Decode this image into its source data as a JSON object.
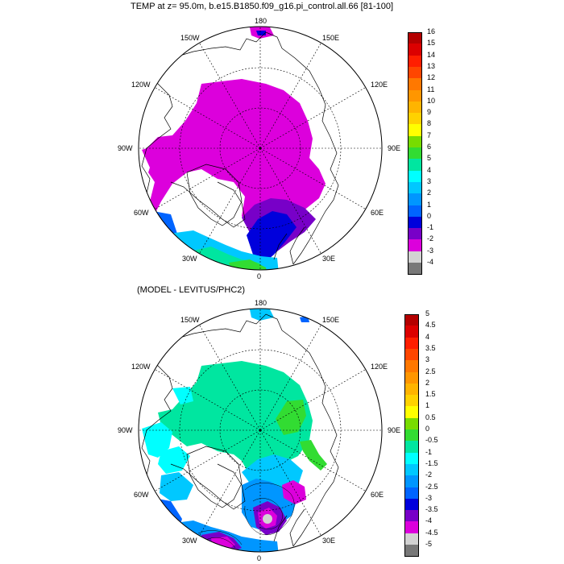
{
  "top_panel": {
    "title": "TEMP at z=  95.0m, b.e15.B1850.f09_g16.pi_control.all.66 [81-100]",
    "longitude_labels": [
      "180",
      "150W",
      "150E",
      "120W",
      "120E",
      "90W",
      "90E",
      "60W",
      "60E",
      "30W",
      "30E",
      "0"
    ],
    "colorbar": {
      "labels": [
        "16",
        "15",
        "14",
        "13",
        "12",
        "11",
        "10",
        "9",
        "8",
        "7",
        "6",
        "5",
        "4",
        "3",
        "2",
        "1",
        "0",
        "-1",
        "-2",
        "-3",
        "-4"
      ],
      "colors": [
        "#b40000",
        "#dc0000",
        "#ff1e00",
        "#ff4600",
        "#ff7800",
        "#ff9600",
        "#ffb400",
        "#ffd200",
        "#ffff00",
        "#78dc00",
        "#32dc32",
        "#00e6a0",
        "#00ffff",
        "#00c8ff",
        "#0096ff",
        "#0064ff",
        "#0000dc",
        "#7800c8",
        "#dc00dc",
        "#d2d2d2",
        "#787878"
      ]
    }
  },
  "bottom_panel": {
    "title": "(MODEL - LEVITUS/PHC2)",
    "longitude_labels": [
      "180",
      "150W",
      "150E",
      "120W",
      "120E",
      "90W",
      "90E",
      "60W",
      "60E",
      "30W",
      "30E",
      "0"
    ],
    "colorbar": {
      "labels": [
        "5",
        "4.5",
        "4",
        "3.5",
        "3",
        "2.5",
        "2",
        "1.5",
        "1",
        "0.5",
        "0",
        "-0.5",
        "-1",
        "-1.5",
        "-2",
        "-2.5",
        "-3",
        "-3.5",
        "-4",
        "-4.5",
        "-5"
      ],
      "colors": [
        "#b40000",
        "#dc0000",
        "#ff1e00",
        "#ff4600",
        "#ff7800",
        "#ff9600",
        "#ffb400",
        "#ffd200",
        "#ffff00",
        "#78dc00",
        "#32dc32",
        "#00e6a0",
        "#00ffff",
        "#00c8ff",
        "#0096ff",
        "#0064ff",
        "#0000dc",
        "#7800c8",
        "#dc00dc",
        "#d2d2d2",
        "#787878"
      ]
    }
  }
}
